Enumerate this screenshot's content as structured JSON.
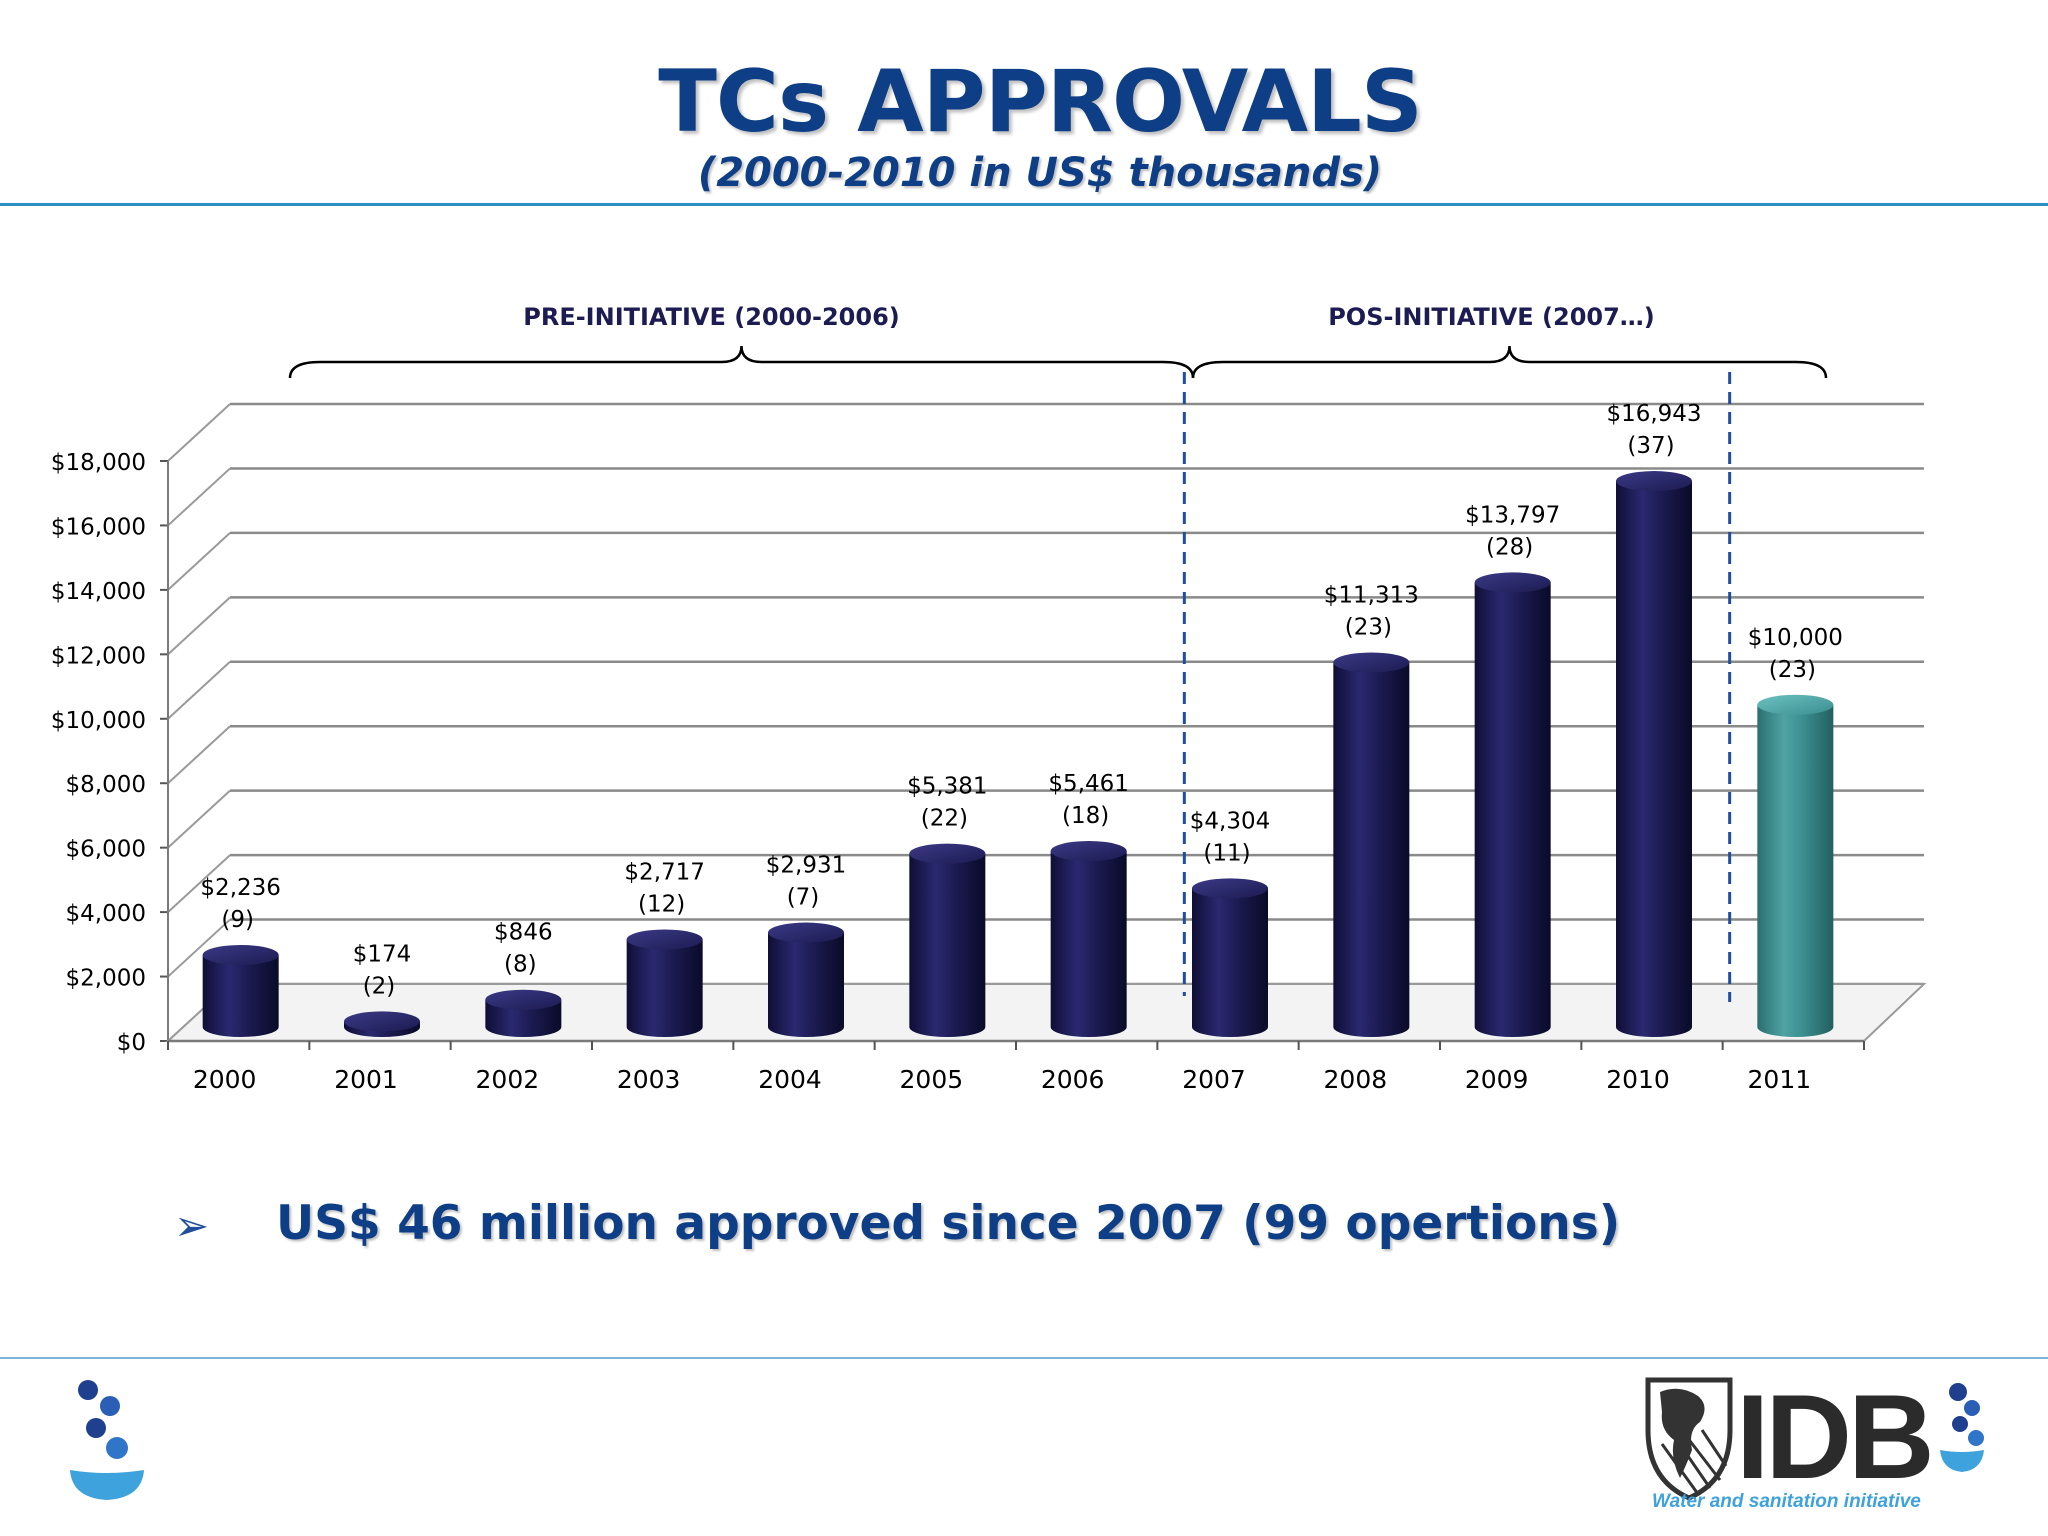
{
  "header": {
    "title": "TCs APPROVALS",
    "subtitle": "(2000-2010 in US$ thousands)"
  },
  "chart_data": {
    "type": "bar",
    "title": "TCs APPROVALS",
    "subtitle": "(2000-2010 in US$ thousands)",
    "xlabel": "",
    "ylabel": "",
    "ylim": [
      0,
      18000
    ],
    "yticks": [
      0,
      2000,
      4000,
      6000,
      8000,
      10000,
      12000,
      14000,
      16000,
      18000
    ],
    "ytick_labels": [
      "$0",
      "$2,000",
      "$4,000",
      "$6,000",
      "$8,000",
      "$10,000",
      "$12,000",
      "$14,000",
      "$16,000",
      "$18,000"
    ],
    "grid": true,
    "categories": [
      "2000",
      "2001",
      "2002",
      "2003",
      "2004",
      "2005",
      "2006",
      "2007",
      "2008",
      "2009",
      "2010",
      "2011"
    ],
    "values": [
      2236,
      174,
      846,
      2717,
      2931,
      5381,
      5461,
      4304,
      11313,
      13797,
      16943,
      10000
    ],
    "value_labels": [
      "$2,236",
      "$174",
      "$846",
      "$2,717",
      "$2,931",
      "$5,381",
      "$5,461",
      "$4,304",
      "$11,313",
      "$13,797",
      "$16,943",
      "$10,000"
    ],
    "operation_counts": [
      "(9)",
      "(2)",
      "(8)",
      "(12)",
      "(7)",
      "(22)",
      "(18)",
      "(11)",
      "(23)",
      "(28)",
      "(37)",
      "(23)"
    ],
    "colors": {
      "bar": "#1c1b52",
      "highlight": "#3b8e8f",
      "grid": "#8a8a8a",
      "divider": "#1f4e9c",
      "title": "#0e3f86",
      "group_label": "#1c1b52"
    },
    "highlight_category": "2011",
    "groups": [
      {
        "label": "PRE-INITIATIVE (2000-2006)",
        "from": "2000",
        "to": "2006"
      },
      {
        "label": "POS-INITIATIVE (2007…)",
        "from": "2007",
        "to": "2011"
      }
    ]
  },
  "bullet": {
    "icon": "arrowhead-bullet-icon",
    "text": "US$ 46 million approved since 2007 (99 opertions)"
  },
  "logos": {
    "left": "water-drops-logo-icon",
    "right": {
      "wordmark": "IDB",
      "tagline": "Water and sanitation initiative"
    }
  }
}
